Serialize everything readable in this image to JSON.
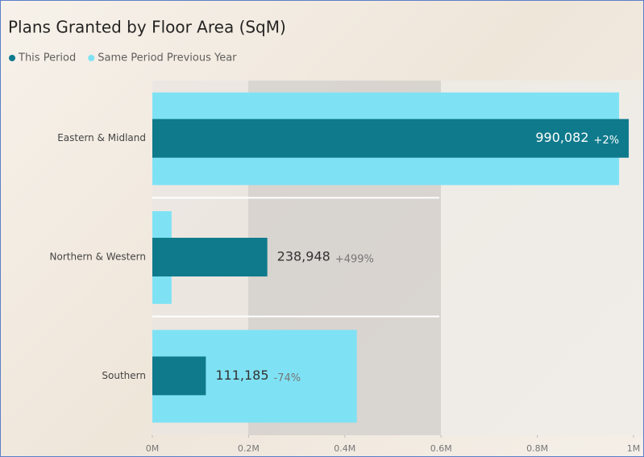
{
  "chart_data": {
    "type": "overlapped-bar",
    "title": "Plans Granted by Floor Area (SqM)",
    "categories": [
      "Eastern & Midland",
      "Northern & Western",
      "Southern"
    ],
    "series": [
      {
        "name": "This Period",
        "color": "#0f7a8c",
        "values": [
          990082,
          238948,
          111185
        ],
        "value_labels": [
          "990,082",
          "238,948",
          "111,185"
        ]
      },
      {
        "name": "Same Period Previous Year",
        "color": "#7fe2f4",
        "values": [
          970000,
          40000,
          425000
        ]
      }
    ],
    "change_labels": [
      "+2%",
      "+499%",
      "-74%"
    ],
    "xlim": [
      0,
      1000000
    ],
    "xticks": [
      {
        "value": 0,
        "label": "0M"
      },
      {
        "value": 200000,
        "label": "0.2M"
      },
      {
        "value": 400000,
        "label": "0.4M"
      },
      {
        "value": 600000,
        "label": "0.6M"
      },
      {
        "value": 800000,
        "label": "0.8M"
      },
      {
        "value": 1000000,
        "label": "1M"
      }
    ],
    "legend": "top-left"
  }
}
